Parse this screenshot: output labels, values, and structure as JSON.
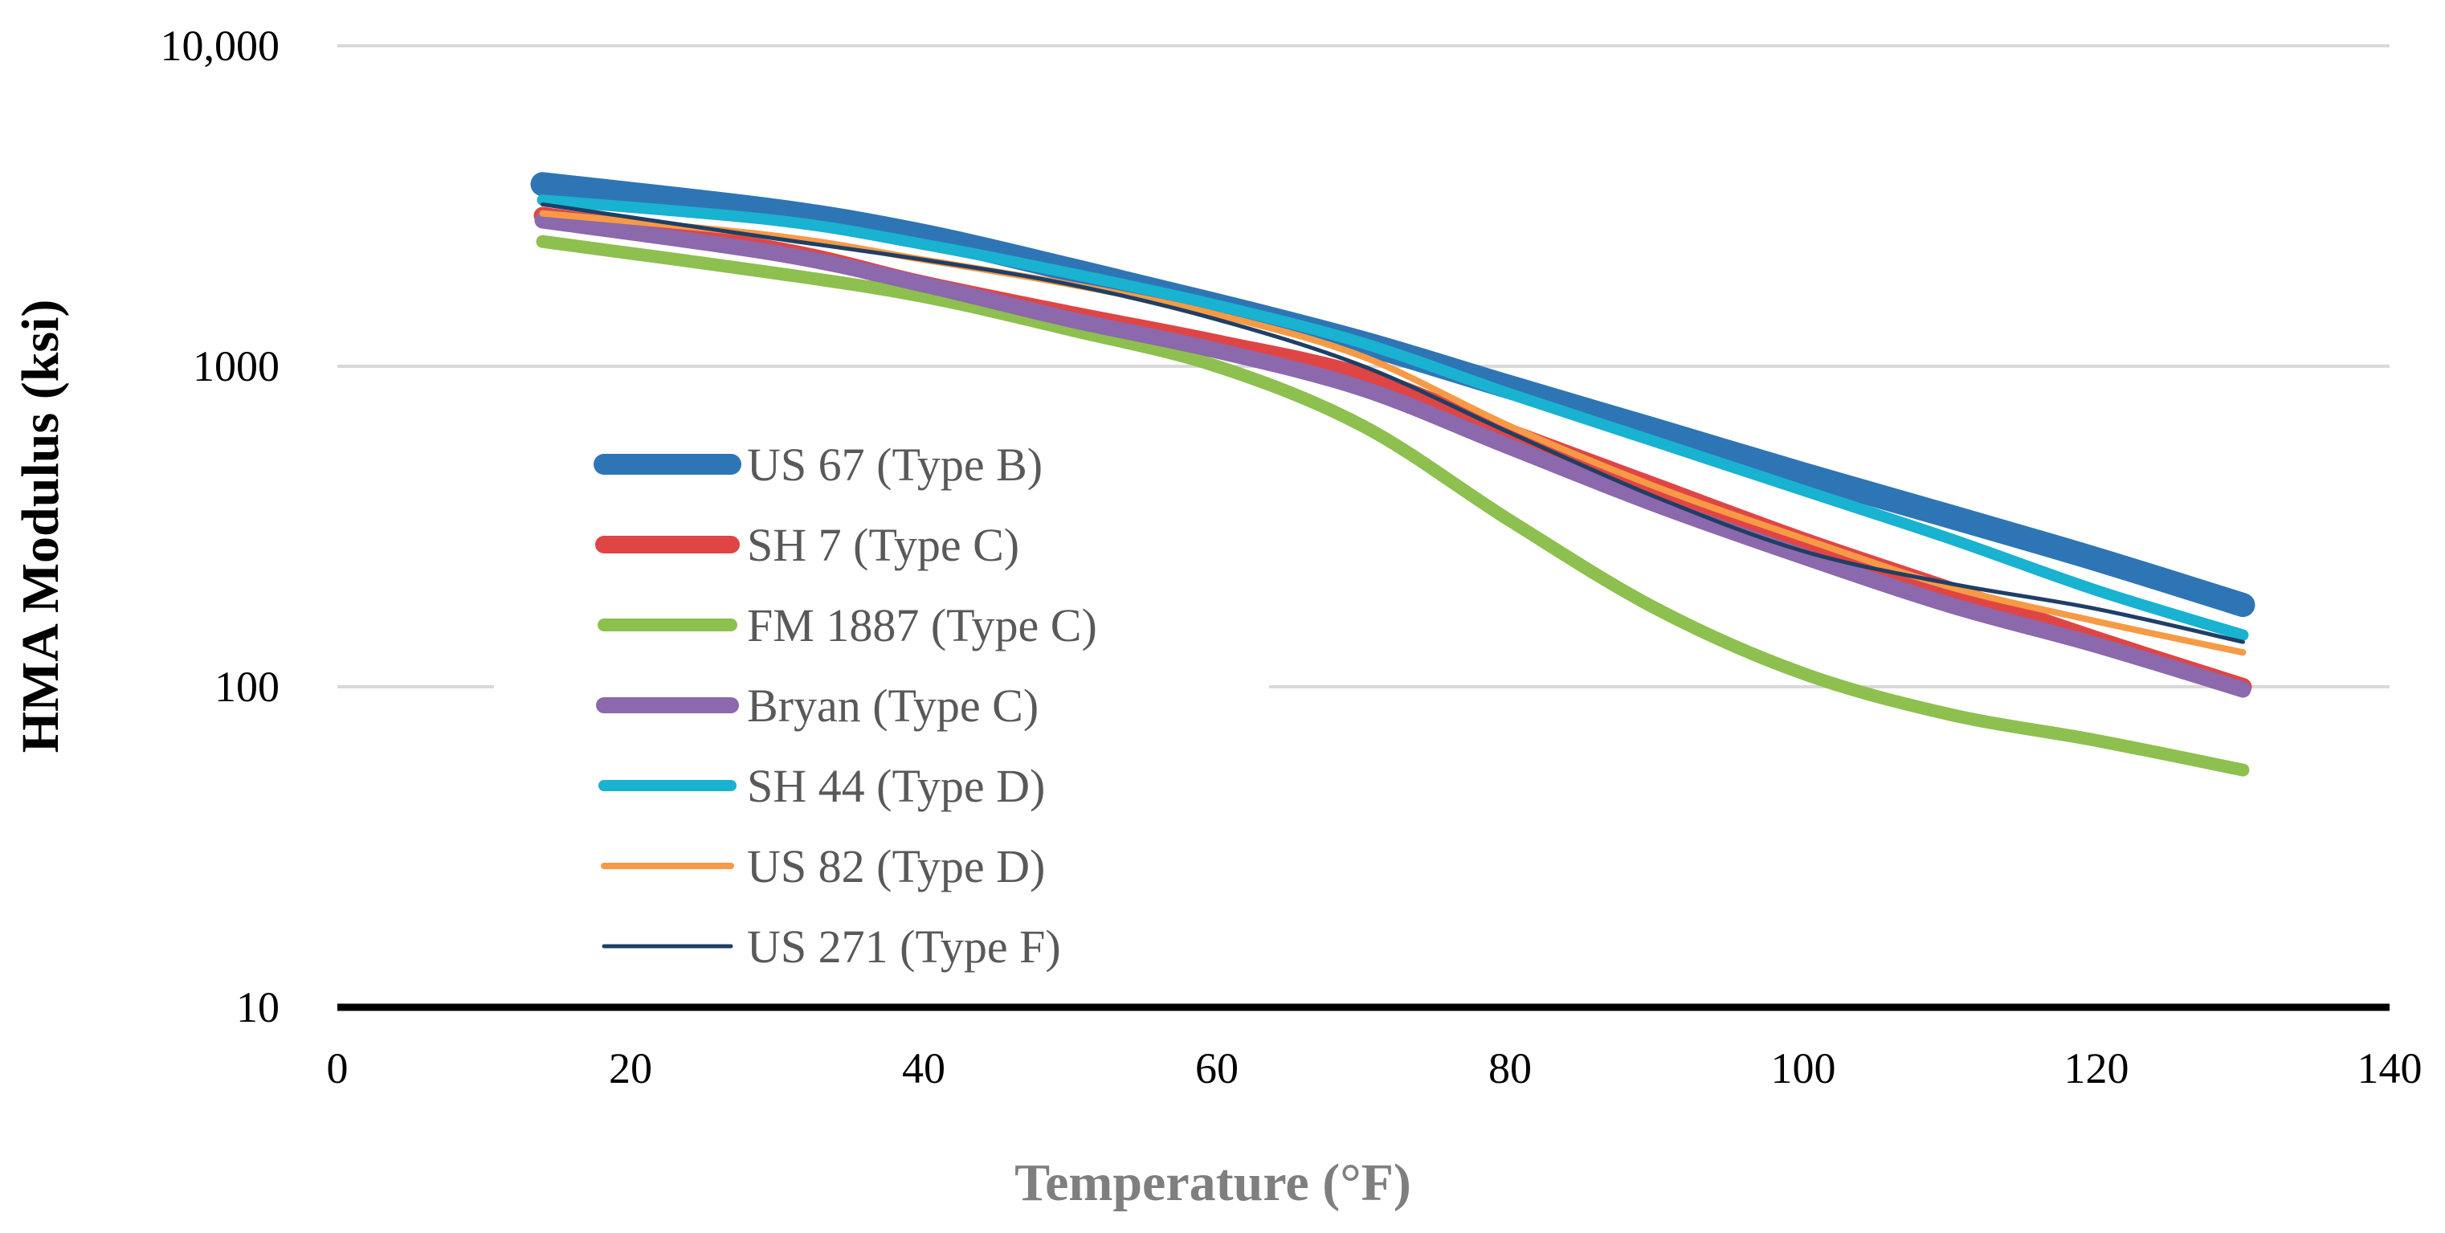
{
  "chart_data": {
    "type": "line",
    "title": "",
    "xlabel": "Temperature (°F)",
    "ylabel": "HMA Modulus (ksi)",
    "xlim": [
      0,
      140
    ],
    "ylim": [
      10,
      10000
    ],
    "yscale": "log",
    "x_ticks": [
      "0",
      "20",
      "40",
      "60",
      "80",
      "100",
      "120",
      "140"
    ],
    "y_ticks": [
      "10",
      "100",
      "1000",
      "10,000"
    ],
    "grid": "horizontal",
    "legend_position": "center-left",
    "series": [
      {
        "name": "US 67 (Type B)",
        "color": "#2E75B6",
        "x": [
          14,
          30,
          40,
          50,
          60,
          70,
          80,
          90,
          100,
          110,
          120,
          130
        ],
        "y": [
          3700,
          3050,
          2550,
          2000,
          1550,
          1180,
          860,
          630,
          460,
          340,
          250,
          180
        ]
      },
      {
        "name": "SH 7 (Type C)",
        "color": "#E04545",
        "x": [
          14,
          30,
          40,
          50,
          60,
          70,
          80,
          90,
          100,
          110,
          120,
          130
        ],
        "y": [
          2950,
          2300,
          1800,
          1450,
          1180,
          930,
          620,
          420,
          285,
          200,
          140,
          100
        ]
      },
      {
        "name": "FM 1887 (Type C)",
        "color": "#8DC04F",
        "x": [
          14,
          30,
          40,
          50,
          60,
          70,
          80,
          90,
          100,
          110,
          120,
          130
        ],
        "y": [
          2450,
          1950,
          1650,
          1300,
          1000,
          650,
          330,
          175,
          110,
          82,
          68,
          55
        ]
      },
      {
        "name": "Bryan (Type C)",
        "color": "#8C68AC",
        "x": [
          14,
          30,
          40,
          50,
          60,
          70,
          80,
          90,
          100,
          110,
          120,
          130
        ],
        "y": [
          2850,
          2250,
          1800,
          1400,
          1120,
          850,
          560,
          370,
          255,
          180,
          135,
          98
        ]
      },
      {
        "name": "SH 44 (Type D)",
        "color": "#19B2D0",
        "x": [
          14,
          30,
          40,
          50,
          60,
          70,
          80,
          90,
          100,
          110,
          120,
          130
        ],
        "y": [
          3300,
          2850,
          2400,
          1950,
          1550,
          1180,
          820,
          580,
          410,
          290,
          200,
          145
        ]
      },
      {
        "name": "US 82 (Type D)",
        "color": "#F79A46",
        "x": [
          14,
          30,
          40,
          50,
          60,
          70,
          80,
          90,
          100,
          110,
          120,
          130
        ],
        "y": [
          3000,
          2550,
          2150,
          1800,
          1450,
          1070,
          650,
          420,
          290,
          205,
          160,
          128
        ]
      },
      {
        "name": "US 271 (Type F)",
        "color": "#1F3F66",
        "x": [
          14,
          30,
          40,
          50,
          60,
          70,
          80,
          90,
          100,
          110,
          120,
          130
        ],
        "y": [
          3200,
          2500,
          2150,
          1800,
          1400,
          1000,
          620,
          390,
          265,
          210,
          175,
          138
        ]
      }
    ]
  }
}
